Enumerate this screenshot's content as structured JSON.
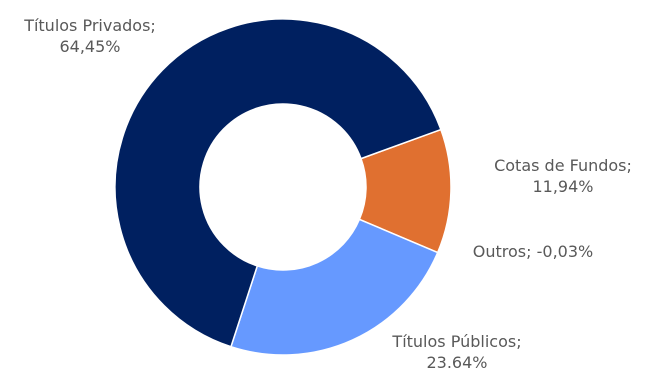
{
  "chart_data": {
    "type": "donut",
    "slices": [
      {
        "name": "Cotas de Fundos",
        "value": 11.94,
        "label_name": "Cotas de Fundos;",
        "label_value": "11,94%",
        "color": "#E07030"
      },
      {
        "name": "Títulos Públicos",
        "value": 23.64,
        "label_name": "Títulos Públicos;",
        "label_value": "23.64%",
        "color": "#6699FF"
      },
      {
        "name": "Títulos Privados",
        "value": 64.45,
        "label_name": "Títulos Privados;",
        "label_value": "64,45%",
        "color": "#002060"
      },
      {
        "name": "Outros",
        "value": -0.03,
        "label_inline": "Outros; -0,03%",
        "color": "#A5A5A5"
      }
    ],
    "legend": "none"
  }
}
